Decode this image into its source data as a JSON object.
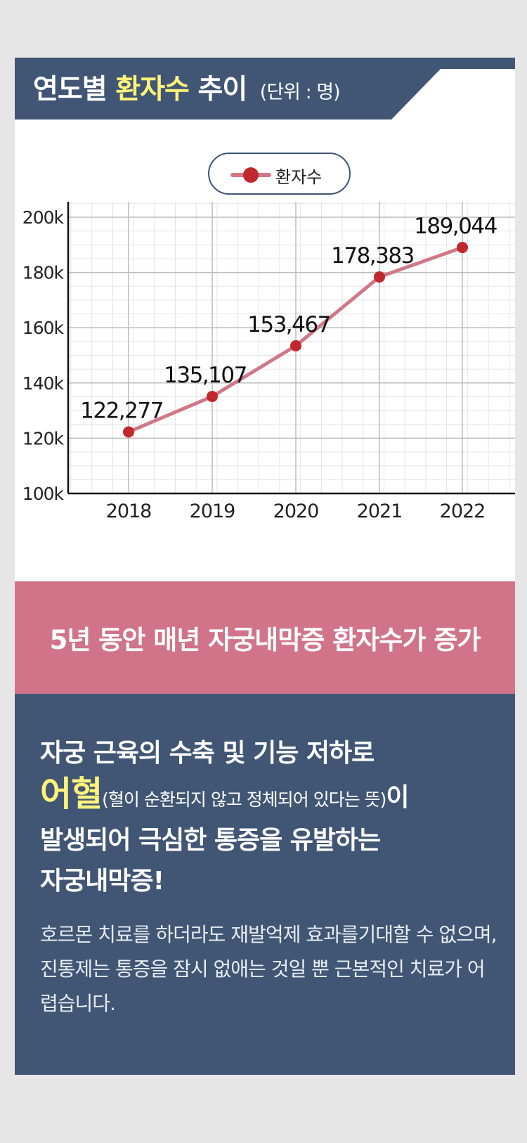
{
  "header": {
    "title_prefix": "연도별",
    "title_highlight": "환자수",
    "title_suffix": "추이",
    "unit": "(단위 : 명)"
  },
  "legend": {
    "label": "환자수"
  },
  "colors": {
    "navy": "#405674",
    "pink": "#d1748a",
    "line": "#d07888",
    "point": "#c0282e",
    "highlight": "#fff37a"
  },
  "chart_data": {
    "type": "line",
    "title": "연도별 환자수 추이 (단위 : 명)",
    "categories": [
      "2018",
      "2019",
      "2020",
      "2021",
      "2022"
    ],
    "series": [
      {
        "name": "환자수",
        "values": [
          122277,
          135107,
          153467,
          178383,
          189044
        ]
      }
    ],
    "data_labels": [
      "122,277",
      "135,107",
      "153,467",
      "178,383",
      "189,044"
    ],
    "ylim": [
      100000,
      200000
    ],
    "yticks": [
      {
        "value": 100000,
        "label": "100k"
      },
      {
        "value": 120000,
        "label": "120k"
      },
      {
        "value": 140000,
        "label": "140k"
      },
      {
        "value": 160000,
        "label": "160k"
      },
      {
        "value": 180000,
        "label": "180k"
      },
      {
        "value": 200000,
        "label": "200k"
      }
    ],
    "grid": true,
    "legend_position": "top-center"
  },
  "banner": {
    "text": "5년 동안 매년 자궁내막증 환자수가 증가"
  },
  "info": {
    "line1": "자궁 근육의 수축 및 기능 저하로",
    "term": "어혈",
    "term_note": "(혈이 순환되지 않고 정체되어 있다는 뜻)",
    "term_suffix": "이",
    "line3": "발생되어 극심한 통증을 유발하는",
    "line4": "자궁내막증!",
    "body": "호르몬 치료를 하더라도 재발억제 효과를기대할 수 없으며, 진통제는 통증을 잠시 없애는 것일 뿐 근본적인 치료가 어렵습니다."
  }
}
